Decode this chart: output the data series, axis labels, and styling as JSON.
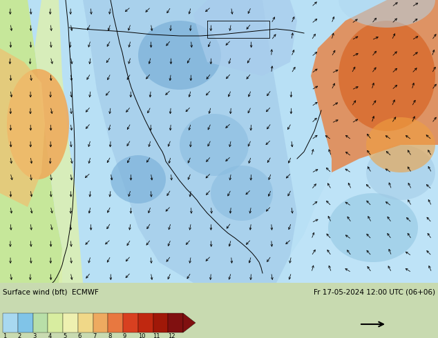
{
  "title_left": "Surface wind (bft)  ECMWF",
  "title_right": "Fr 17-05-2024 12:00 UTC (06+06)",
  "colorbar_labels": [
    "1",
    "2",
    "3",
    "4",
    "5",
    "6",
    "7",
    "8",
    "9",
    "10",
    "11",
    "12"
  ],
  "colorbar_colors": [
    "#a8d8f0",
    "#80c4e8",
    "#b8dfa8",
    "#d8eda0",
    "#eef0b0",
    "#f0d888",
    "#eeaa60",
    "#e87840",
    "#d84020",
    "#c02810",
    "#a01808",
    "#801010"
  ],
  "fig_width": 6.34,
  "fig_height": 4.9,
  "dpi": 100,
  "map_colors": {
    "ocean_bg": "#b8dff0",
    "light_blue": "#9dd0e8",
    "mid_blue": "#7ab8d8",
    "pale_blue": "#c8eaf8",
    "light_green": "#c8e8a0",
    "pale_yellow": "#e8f0b0",
    "orange_light": "#f0b870",
    "orange": "#e88840",
    "orange_dark": "#d86030",
    "land_bg": "#c8eaf5"
  },
  "bottom_bg": "#c8d8b0",
  "arrow_scale": 10
}
